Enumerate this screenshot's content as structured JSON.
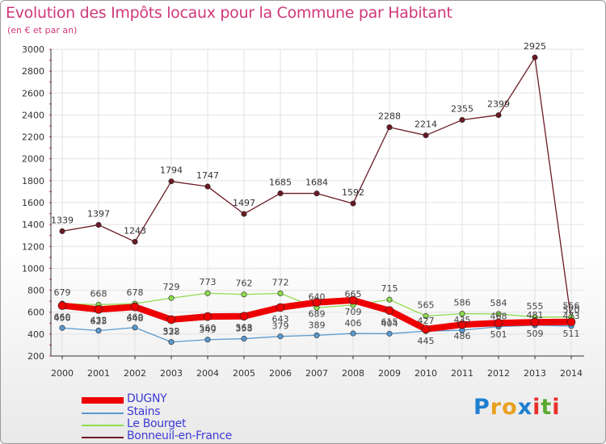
{
  "title": "Evolution des Impôts locaux pour la Commune par Habitant",
  "subtitle": "(en € et par an)",
  "logo_text": "Proxiti",
  "colors": {
    "title": "#d0387a",
    "DUGNY": "#ee0000",
    "Stains": "#5a9ad0",
    "Le Bourget": "#8edc50",
    "Bonneuil-en-France": "#6b1a24"
  },
  "chart_data": {
    "type": "line",
    "title": "Evolution des Impôts locaux pour la Commune par Habitant",
    "ylabel": "(en € et par an)",
    "xlabel": "",
    "ylim": [
      200,
      3000
    ],
    "yticks": [
      "200",
      "400",
      "600",
      "800",
      "1000",
      "1200",
      "1400",
      "1600",
      "1800",
      "2000",
      "2200",
      "2400",
      "2600",
      "2800",
      "3000"
    ],
    "categories": [
      "2000",
      "2001",
      "2002",
      "2003",
      "2004",
      "2005",
      "2006",
      "2007",
      "2008",
      "2009",
      "2010",
      "2011",
      "2012",
      "2013",
      "2014"
    ],
    "series": [
      {
        "name": "Bonneuil-en-France",
        "values": [
          1339,
          1397,
          1243,
          1794,
          1747,
          1497,
          1685,
          1684,
          1592,
          2288,
          2214,
          2355,
          2399,
          2925,
          520
        ]
      },
      {
        "name": "Le Bourget",
        "values": [
          679,
          668,
          678,
          729,
          773,
          762,
          772,
          640,
          665,
          715,
          565,
          586,
          584,
          555,
          556
        ]
      },
      {
        "name": "Stains",
        "values": [
          456,
          432,
          460,
          328,
          349,
          358,
          379,
          389,
          406,
          404,
          427,
          435,
          468,
          481,
          473
        ]
      },
      {
        "name": "DUGNY",
        "values": [
          660,
          625,
          648,
          532,
          560,
          563,
          643,
          689,
          709,
          615,
          445,
          486,
          501,
          509,
          511
        ]
      }
    ],
    "legend": [
      "DUGNY",
      "Stains",
      "Le Bourget",
      "Bonneuil-en-France"
    ],
    "legend_position": "bottom-left"
  }
}
